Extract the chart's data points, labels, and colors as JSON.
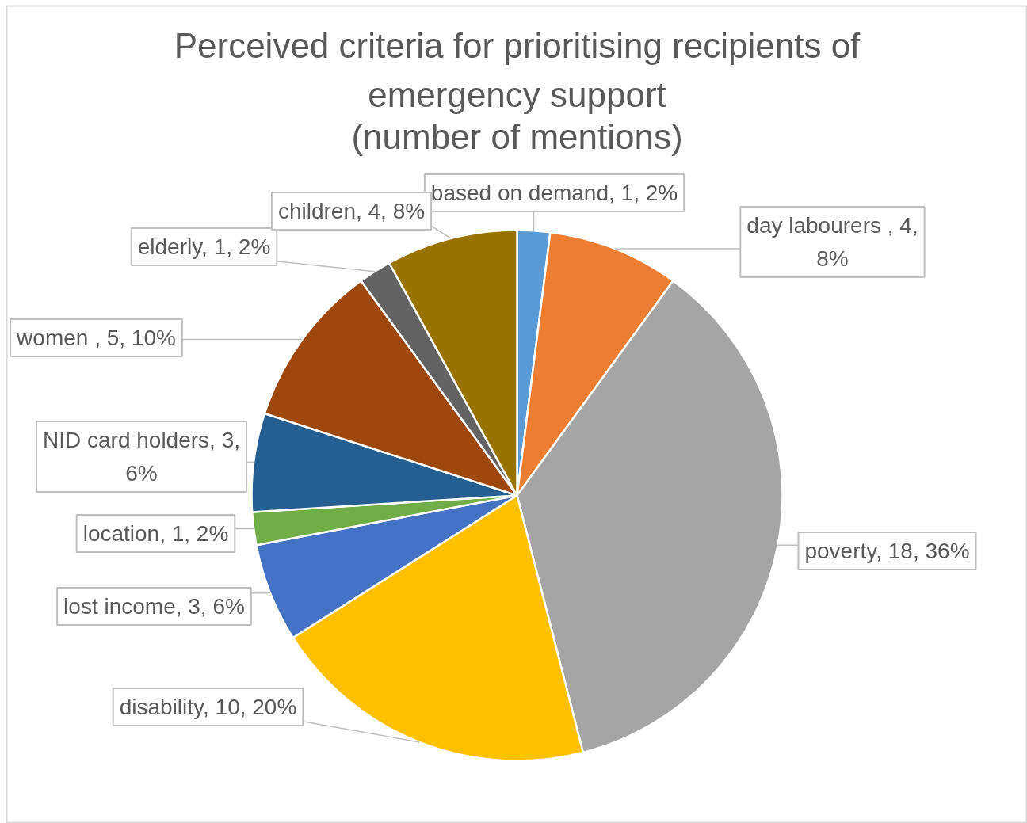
{
  "chart_data": {
    "type": "pie",
    "title": "Perceived criteria for prioritising recipients of emergency support",
    "subtitle": "(number of mentions)",
    "categories": [
      "based on demand",
      "day labourers ",
      "poverty",
      "disability",
      "lost income",
      "location",
      "NID card holders",
      "women ",
      "elderly",
      "children"
    ],
    "values": [
      1,
      4,
      18,
      10,
      3,
      1,
      3,
      5,
      1,
      4
    ],
    "colors": [
      "#5b9bd5",
      "#ed7d31",
      "#a5a5a5",
      "#ffc000",
      "#4472c4",
      "#70ad47",
      "#255e91",
      "#9e480e",
      "#636363",
      "#997300"
    ],
    "value_labels": [
      "1, 2%",
      "4, 8%",
      "18, 36%",
      "10, 20%",
      "3, 6%",
      "1, 2%",
      "3, 6%",
      "5, 10%",
      "1, 2%",
      "4, 8%"
    ]
  }
}
